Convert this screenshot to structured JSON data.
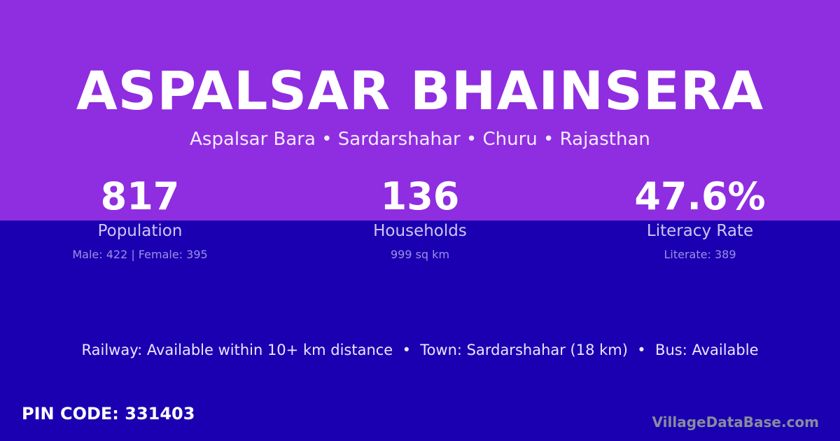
{
  "colors": {
    "top_band": "#8f2de0",
    "bottom_band": "#1a00b0"
  },
  "title": "ASPALSAR BHAINSERA",
  "subtitle": "Aspalsar Bara • Sardarshahar • Churu • Rajasthan",
  "stats": [
    {
      "value": "817",
      "label": "Population",
      "sub": "Male: 422 | Female: 395"
    },
    {
      "value": "136",
      "label": "Households",
      "sub": "999 sq km"
    },
    {
      "value": "47.6%",
      "label": "Literacy Rate",
      "sub": "Literate: 389"
    }
  ],
  "info": "Railway: Available within 10+ km distance  •  Town: Sardarshahar (18 km)  •  Bus: Available",
  "pin": "PIN CODE: 331403",
  "brand": "VillageDataBase.com"
}
